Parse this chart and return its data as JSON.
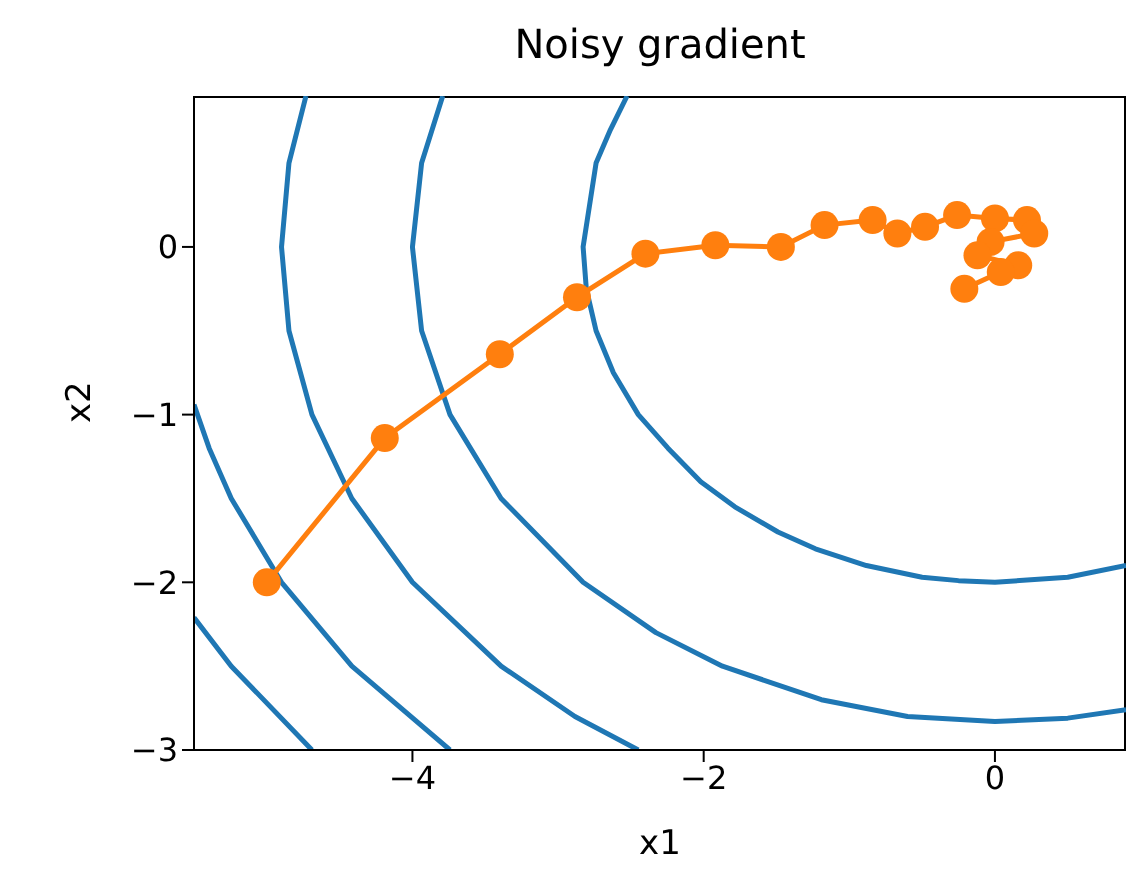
{
  "chart_data": {
    "type": "line",
    "title": "Noisy gradient",
    "xlabel": "x1",
    "ylabel": "x2",
    "xlim": [
      -5.5,
      0.9
    ],
    "ylim": [
      -3,
      0.9
    ],
    "xticks": [
      {
        "value": -4,
        "label": "−4"
      },
      {
        "value": -2,
        "label": "−2"
      },
      {
        "value": 0,
        "label": "0"
      }
    ],
    "yticks": [
      {
        "value": -3,
        "label": "−3"
      },
      {
        "value": -2,
        "label": "−2"
      },
      {
        "value": -1,
        "label": "−1"
      },
      {
        "value": 0,
        "label": "0"
      }
    ],
    "grid": false,
    "series": [
      {
        "color": "#1f77b4",
        "marker": "none",
        "x": [
          -2.526,
          -2.64,
          -2.739,
          -2.828,
          -2.806,
          -2.739,
          -2.62,
          -2.449,
          -2.245,
          -2.02,
          -1.786,
          -1.49,
          -1.233,
          -0.883,
          -0.5,
          -0.25,
          0,
          0.5,
          0.9
        ],
        "values": [
          0.9,
          0.7,
          0.5,
          0,
          -0.25,
          -0.5,
          -0.75,
          -1,
          -1.2,
          -1.4,
          -1.55,
          -1.7,
          -1.8,
          -1.9,
          -1.97,
          -1.99,
          -2,
          -1.97,
          -1.9
        ]
      },
      {
        "color": "#1f77b4",
        "marker": "none",
        "x": [
          -3.792,
          -3.937,
          -4,
          -3.937,
          -3.742,
          -3.391,
          -2.828,
          -2.328,
          -1.871,
          -1.192,
          -0.6,
          0,
          0.5,
          0.9
        ],
        "values": [
          0.9,
          0.5,
          0,
          -0.5,
          -1,
          -1.5,
          -2,
          -2.3,
          -2.5,
          -2.7,
          -2.8,
          -2.83,
          -2.81,
          -2.76
        ]
      },
      {
        "color": "#1f77b4",
        "marker": "none",
        "x": [
          -4.731,
          -4.848,
          -4.899,
          -4.848,
          -4.69,
          -4.416,
          -4,
          -3.391,
          -2.884,
          -2.449
        ],
        "values": [
          0.9,
          0.5,
          0,
          -0.5,
          -1,
          -1.5,
          -2,
          -2.5,
          -2.8,
          -3
        ]
      },
      {
        "color": "#1f77b4",
        "marker": "none",
        "x": [
          -5.5,
          -5.396,
          -5.244,
          -4.899,
          -4.416,
          -3.742
        ],
        "values": [
          -0.94,
          -1.2,
          -1.5,
          -2,
          -2.5,
          -3
        ]
      },
      {
        "color": "#1f77b4",
        "marker": "none",
        "x": [
          -5.5,
          -5.244,
          -4.69
        ],
        "values": [
          -2.21,
          -2.5,
          -3
        ]
      },
      {
        "color": "#ff7f0e",
        "marker": "circle",
        "x": [
          -5,
          -4.19,
          -3.4,
          -2.87,
          -2.4,
          -1.92,
          -1.47,
          -1.17,
          -0.84,
          -0.67,
          -0.48,
          -0.26,
          0,
          0.22,
          0.27,
          -0.03,
          -0.12,
          0.16,
          0.04,
          -0.21
        ],
        "values": [
          -2,
          -1.14,
          -0.64,
          -0.3,
          -0.04,
          0.01,
          0,
          0.13,
          0.16,
          0.08,
          0.12,
          0.19,
          0.17,
          0.16,
          0.08,
          0.03,
          -0.05,
          -0.11,
          -0.15,
          -0.25
        ]
      }
    ]
  }
}
